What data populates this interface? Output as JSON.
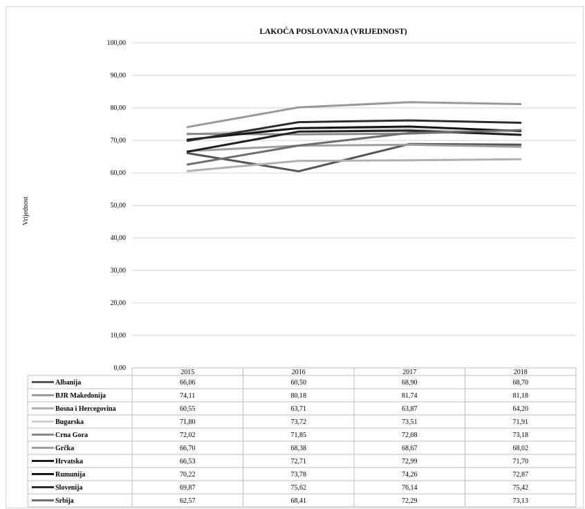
{
  "chart_data": {
    "type": "line",
    "title": "LAKOĆA POSLOVANJA (VRIJEDNOST)",
    "ylabel": "Vrijednost",
    "xlabel": "",
    "categories": [
      "2015",
      "2016",
      "2017",
      "2018"
    ],
    "ylim": [
      0,
      100
    ],
    "yticks": [
      "0,00",
      "10,00",
      "20,00",
      "30,00",
      "40,00",
      "50,00",
      "60,00",
      "70,00",
      "80,00",
      "90,00",
      "100,00"
    ],
    "grid": true,
    "legend": "data table below chart",
    "series": [
      {
        "name": "Albanija",
        "color": "#555555",
        "values": [
          66.06,
          60.5,
          68.9,
          68.7
        ],
        "labels": [
          "66,06",
          "60,50",
          "68,90",
          "68,70"
        ]
      },
      {
        "name": "BJR Makedonija",
        "color": "#999999",
        "values": [
          74.11,
          80.18,
          81.74,
          81.18
        ],
        "labels": [
          "74,11",
          "80,18",
          "81,74",
          "81,18"
        ]
      },
      {
        "name": "Bosna i Hercegovina",
        "color": "#b0b0b0",
        "values": [
          60.55,
          63.71,
          63.87,
          64.2
        ],
        "labels": [
          "60,55",
          "63,71",
          "63,87",
          "64,20"
        ]
      },
      {
        "name": "Bugarska",
        "color": "#cfcfcf",
        "values": [
          71.8,
          73.72,
          73.51,
          71.91
        ],
        "labels": [
          "71,80",
          "73,72",
          "73,51",
          "71,91"
        ]
      },
      {
        "name": "Crna Gora",
        "color": "#8a8a8a",
        "values": [
          72.02,
          71.85,
          72.08,
          73.18
        ],
        "labels": [
          "72,02",
          "71,85",
          "72,08",
          "73,18"
        ]
      },
      {
        "name": "Grčka",
        "color": "#9f9f9f",
        "values": [
          66.7,
          68.38,
          68.67,
          68.02
        ],
        "labels": [
          "66,70",
          "68,38",
          "68,67",
          "68,02"
        ]
      },
      {
        "name": "Hrvatska",
        "color": "#1e1e1e",
        "values": [
          66.53,
          72.71,
          72.99,
          71.7
        ],
        "labels": [
          "66,53",
          "72,71",
          "72,99",
          "71,70"
        ]
      },
      {
        "name": "Rumunija",
        "color": "#141414",
        "values": [
          70.22,
          73.78,
          74.26,
          72.87
        ],
        "labels": [
          "70,22",
          "73,78",
          "74,26",
          "72,87"
        ]
      },
      {
        "name": "Slovenija",
        "color": "#2c2c2c",
        "values": [
          69.87,
          75.62,
          76.14,
          75.42
        ],
        "labels": [
          "69,87",
          "75,62",
          "76,14",
          "75,42"
        ]
      },
      {
        "name": "Srbija",
        "color": "#6e6e6e",
        "values": [
          62.57,
          68.41,
          72.29,
          73.13
        ],
        "labels": [
          "62,57",
          "68,41",
          "72,29",
          "73,13"
        ]
      }
    ]
  }
}
